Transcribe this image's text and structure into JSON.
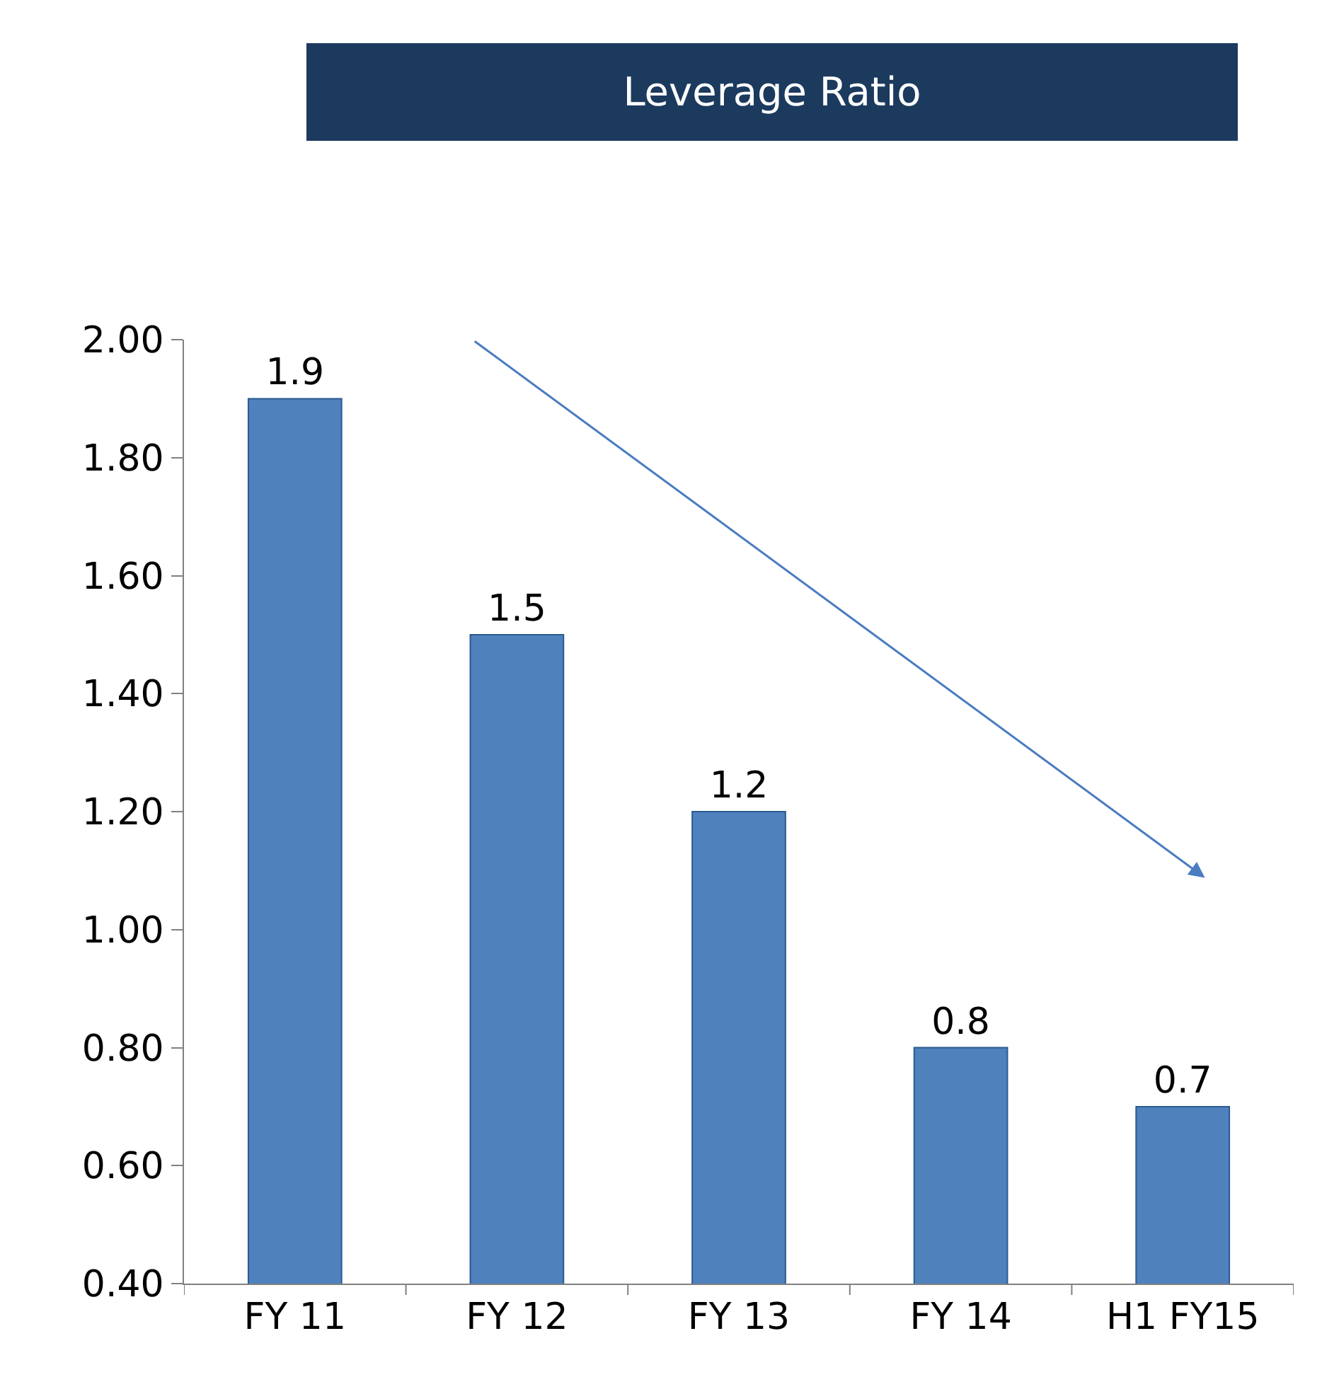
{
  "chart_data": {
    "type": "bar",
    "title": "Leverage Ratio",
    "categories": [
      "FY 11",
      "FY 12",
      "FY 13",
      "FY 14",
      "H1 FY15"
    ],
    "values": [
      1.9,
      1.5,
      1.2,
      0.8,
      0.7
    ],
    "color": "#4f81bd",
    "ylim": [
      0.4,
      2.0
    ],
    "yticks": [
      {
        "value": 0.4,
        "label": "0.40"
      },
      {
        "value": 0.6,
        "label": "0.60"
      },
      {
        "value": 0.8,
        "label": "0.80"
      },
      {
        "value": 1.0,
        "label": "1.00"
      },
      {
        "value": 1.2,
        "label": "1.20"
      },
      {
        "value": 1.4,
        "label": "1.40"
      },
      {
        "value": 1.6,
        "label": "1.60"
      },
      {
        "value": 1.8,
        "label": "1.80"
      },
      {
        "value": 2.0,
        "label": "2.00"
      }
    ],
    "legend": false,
    "data_labels": true
  }
}
